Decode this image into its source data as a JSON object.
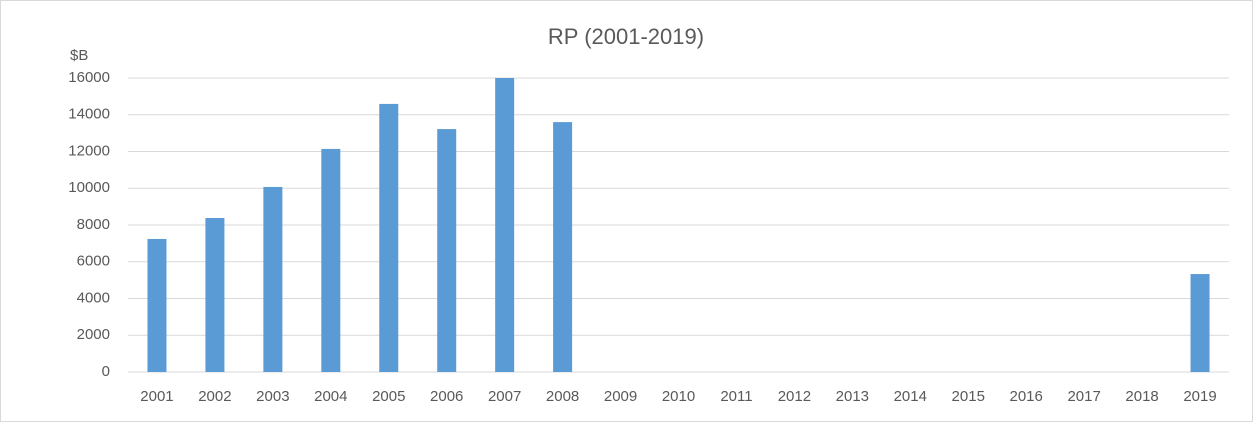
{
  "chart_data": {
    "type": "bar",
    "title": "RP (2001-2019)",
    "y_label": "$B",
    "categories": [
      "2001",
      "2002",
      "2003",
      "2004",
      "2005",
      "2006",
      "2007",
      "2008",
      "2009",
      "2010",
      "2011",
      "2012",
      "2013",
      "2014",
      "2015",
      "2016",
      "2017",
      "2018",
      "2019"
    ],
    "values": [
      7240,
      8380,
      10070,
      12140,
      14590,
      13220,
      16000,
      13600,
      null,
      null,
      null,
      null,
      null,
      null,
      null,
      null,
      null,
      null,
      5330
    ],
    "color": "#5b9bd5",
    "ylim": [
      0,
      16000
    ],
    "yticks": [
      0,
      2000,
      4000,
      6000,
      8000,
      10000,
      12000,
      14000,
      16000
    ],
    "grid": true
  }
}
